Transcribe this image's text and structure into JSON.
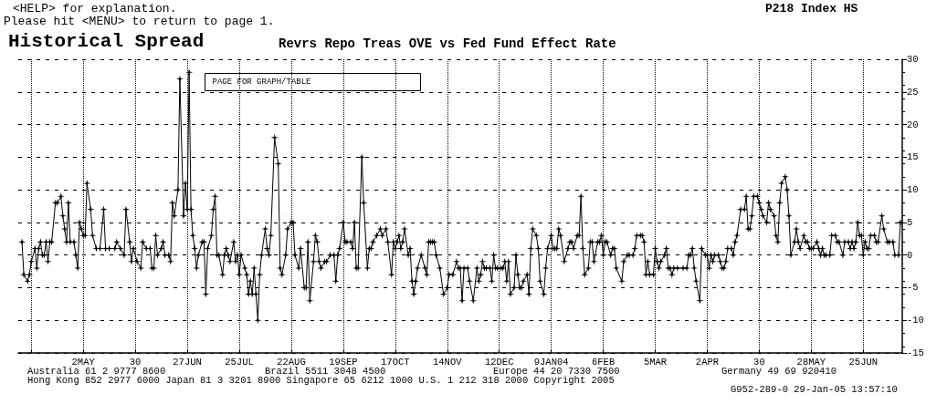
{
  "chart_data": {
    "type": "line",
    "title": "Historical Spread",
    "subtitle": "Revrs Repo Treas OVE vs Fed Fund Effect Rate",
    "annotations": [
      "<HELP> for explanation.",
      "Please hit <MENU> to return to page 1.",
      "P218 Index HS",
      "PAGE FOR GRAPH/TABLE",
      "Australia 61 2 9777 8600",
      "Brazil 5511 3048 4500",
      "Europe 44 20 7330 7500",
      "Germany 49 69 920410",
      "Hong Kong 852 2977 6000 Japan 81 3 3201 8900 Singapore 65 6212 1000 U.S. 1 212 318 2000 Copyright 2005",
      "G952-289-0 29-Jan-05 13:57:10"
    ],
    "x": [
      "2003-03-30",
      "2003-03-31",
      "2003-04-02",
      "2003-04-03",
      "2003-04-04",
      "2003-04-06",
      "2003-04-07",
      "2003-04-08",
      "2003-04-09",
      "2003-04-10",
      "2003-04-11",
      "2003-04-12",
      "2003-04-13",
      "2003-04-14",
      "2003-04-15",
      "2003-04-17",
      "2003-04-18",
      "2003-04-20",
      "2003-04-21",
      "2003-04-22",
      "2003-04-23",
      "2003-04-24",
      "2003-04-25",
      "2003-04-27",
      "2003-04-28",
      "2003-04-29",
      "2003-04-30",
      "2003-05-01",
      "2003-05-02",
      "2003-05-03",
      "2003-05-04",
      "2003-05-06",
      "2003-05-07",
      "2003-05-09",
      "2003-05-11",
      "2003-05-13",
      "2003-05-14",
      "2003-05-16",
      "2003-05-19",
      "2003-05-20",
      "2003-05-22",
      "2003-05-24",
      "2003-05-25",
      "2003-05-27",
      "2003-05-28",
      "2003-05-29",
      "2003-05-31",
      "2003-06-02",
      "2003-06-03",
      "2003-06-05",
      "2003-06-07",
      "2003-06-08",
      "2003-06-09",
      "2003-06-10",
      "2003-06-11",
      "2003-06-13",
      "2003-06-14",
      "2003-06-15",
      "2003-06-17",
      "2003-06-18",
      "2003-06-19",
      "2003-06-20",
      "2003-06-22",
      "2003-06-23",
      "2003-06-25",
      "2003-06-26",
      "2003-06-27",
      "2003-06-28",
      "2003-06-29",
      "2003-06-30",
      "2003-07-01",
      "2003-07-02",
      "2003-07-03",
      "2003-07-05",
      "2003-07-06",
      "2003-07-07",
      "2003-07-08",
      "2003-07-10",
      "2003-07-11",
      "2003-07-12",
      "2003-07-13",
      "2003-07-14",
      "2003-07-16",
      "2003-07-17",
      "2003-07-18",
      "2003-07-19",
      "2003-07-20",
      "2003-07-22",
      "2003-07-23",
      "2003-07-24",
      "2003-07-25",
      "2003-07-26",
      "2003-07-28",
      "2003-07-29",
      "2003-07-30",
      "2003-07-31",
      "2003-08-01",
      "2003-08-02",
      "2003-08-03",
      "2003-08-04",
      "2003-08-05",
      "2003-08-06",
      "2003-08-08",
      "2003-08-09",
      "2003-08-10",
      "2003-08-11",
      "2003-08-13",
      "2003-08-15",
      "2003-08-16",
      "2003-08-17",
      "2003-08-19",
      "2003-08-20",
      "2003-08-22",
      "2003-08-23",
      "2003-08-24",
      "2003-08-26",
      "2003-08-27",
      "2003-08-29",
      "2003-08-30",
      "2003-08-31",
      "2003-09-01",
      "2003-09-03",
      "2003-09-04",
      "2003-09-05",
      "2003-09-06",
      "2003-09-07",
      "2003-09-09",
      "2003-09-10",
      "2003-09-12",
      "2003-09-14",
      "2003-09-15",
      "2003-09-16",
      "2003-09-17",
      "2003-09-19",
      "2003-09-20",
      "2003-09-21",
      "2003-09-23",
      "2003-09-24",
      "2003-09-25",
      "2003-09-26",
      "2003-09-27",
      "2003-09-29",
      "2003-09-30",
      "2003-10-02",
      "2003-10-03",
      "2003-10-04",
      "2003-10-05",
      "2003-10-07",
      "2003-10-09",
      "2003-10-10",
      "2003-10-12",
      "2003-10-13",
      "2003-10-15",
      "2003-10-16",
      "2003-10-17",
      "2003-10-18",
      "2003-10-19",
      "2003-10-20",
      "2003-10-21",
      "2003-10-22",
      "2003-10-24",
      "2003-10-25",
      "2003-10-26",
      "2003-10-27",
      "2003-10-28",
      "2003-10-29",
      "2003-10-31",
      "2003-11-02",
      "2003-11-03",
      "2003-11-04",
      "2003-11-05",
      "2003-11-06",
      "2003-11-07",
      "2003-11-08",
      "2003-11-10",
      "2003-11-12",
      "2003-11-14",
      "2003-11-15",
      "2003-11-17",
      "2003-11-19",
      "2003-11-20",
      "2003-11-21",
      "2003-11-22",
      "2003-11-23",
      "2003-11-25",
      "2003-11-26",
      "2003-11-28",
      "2003-11-30",
      "2003-12-01",
      "2003-12-02",
      "2003-12-03",
      "2003-12-04",
      "2003-12-05",
      "2003-12-07",
      "2003-12-08",
      "2003-12-09",
      "2003-12-10",
      "2003-12-11",
      "2003-12-13",
      "2003-12-14",
      "2003-12-15",
      "2003-12-16",
      "2003-12-17",
      "2003-12-18",
      "2003-12-20",
      "2003-12-21",
      "2003-12-22",
      "2003-12-23",
      "2003-12-24",
      "2003-12-25",
      "2003-12-27",
      "2003-12-28",
      "2003-12-29",
      "2003-12-30",
      "2004-01-01",
      "2004-01-02",
      "2004-01-03",
      "2004-01-05",
      "2004-01-06",
      "2004-01-07",
      "2004-01-09",
      "2004-01-10",
      "2004-01-11",
      "2004-01-12",
      "2004-01-13",
      "2004-01-14",
      "2004-01-16",
      "2004-01-18",
      "2004-01-19",
      "2004-01-20",
      "2004-01-21",
      "2004-01-23",
      "2004-01-24",
      "2004-01-25",
      "2004-01-26",
      "2004-01-27",
      "2004-01-29",
      "2004-01-30",
      "2004-01-31",
      "2004-02-01",
      "2004-02-03",
      "2004-02-04",
      "2004-02-05",
      "2004-02-06",
      "2004-02-07",
      "2004-02-08",
      "2004-02-10",
      "2004-02-11",
      "2004-02-12",
      "2004-02-13",
      "2004-02-16",
      "2004-02-17",
      "2004-02-19",
      "2004-02-20",
      "2004-02-22",
      "2004-02-23",
      "2004-02-24",
      "2004-02-26",
      "2004-02-27",
      "2004-02-28",
      "2004-02-29",
      "2004-03-01",
      "2004-03-02",
      "2004-03-04",
      "2004-03-05",
      "2004-03-06",
      "2004-03-07",
      "2004-03-08",
      "2004-03-10",
      "2004-03-11",
      "2004-03-12",
      "2004-03-13",
      "2004-03-14",
      "2004-03-15",
      "2004-03-17",
      "2004-03-20",
      "2004-03-22",
      "2004-03-23",
      "2004-03-24",
      "2004-03-25",
      "2004-03-26",
      "2004-03-27",
      "2004-03-29",
      "2004-03-30",
      "2004-04-01",
      "2004-04-02",
      "2004-04-03",
      "2004-04-04",
      "2004-04-05",
      "2004-04-06",
      "2004-04-08",
      "2004-04-09",
      "2004-04-10",
      "2004-04-11",
      "2004-04-12",
      "2004-04-13",
      "2004-04-15",
      "2004-04-16",
      "2004-04-17",
      "2004-04-18",
      "2004-04-20",
      "2004-04-22",
      "2004-04-23",
      "2004-04-24",
      "2004-04-25",
      "2004-04-26",
      "2004-04-27",
      "2004-04-29",
      "2004-04-30",
      "2004-05-01",
      "2004-05-02",
      "2004-05-04",
      "2004-05-05",
      "2004-05-06",
      "2004-05-08",
      "2004-05-09",
      "2004-05-10",
      "2004-05-11",
      "2004-05-12",
      "2004-05-14",
      "2004-05-15",
      "2004-05-16",
      "2004-05-17",
      "2004-05-19",
      "2004-05-20",
      "2004-05-21",
      "2004-05-22",
      "2004-05-24",
      "2004-05-25",
      "2004-05-26",
      "2004-05-27",
      "2004-05-28",
      "2004-05-29",
      "2004-05-31",
      "2004-06-01",
      "2004-06-02",
      "2004-06-03",
      "2004-06-04",
      "2004-06-05",
      "2004-06-07",
      "2004-06-08",
      "2004-06-10",
      "2004-06-11",
      "2004-06-12",
      "2004-06-14",
      "2004-06-15",
      "2004-06-17",
      "2004-06-18",
      "2004-06-19",
      "2004-06-20",
      "2004-06-21",
      "2004-06-22",
      "2004-06-23",
      "2004-06-24",
      "2004-06-25",
      "2004-06-26",
      "2004-06-27",
      "2004-06-28",
      "2004-06-29",
      "2004-07-01",
      "2004-07-02",
      "2004-07-03",
      "2004-07-05",
      "2004-07-06",
      "2004-07-08",
      "2004-07-09",
      "2004-07-11",
      "2004-07-12",
      "2004-07-14",
      "2004-07-15"
    ],
    "values": [
      2,
      -3,
      -4,
      -3,
      -1,
      1,
      -2,
      1,
      2,
      0,
      0,
      2,
      -1,
      2,
      2,
      8,
      8,
      9,
      6,
      4,
      2,
      8,
      2,
      2,
      0,
      -2,
      5,
      4,
      3,
      3,
      11,
      7,
      3,
      1,
      1,
      7,
      1,
      1,
      1,
      2,
      1,
      0,
      7,
      2,
      -1,
      1,
      -1,
      -2,
      2,
      1,
      1,
      -2,
      -2,
      3,
      0,
      1,
      2,
      0,
      0,
      -1,
      8,
      6,
      10,
      27,
      6,
      11,
      7,
      28,
      7,
      3,
      1,
      -2,
      0,
      2,
      2,
      -6,
      1,
      3,
      7,
      9,
      0,
      0,
      -3,
      0,
      1,
      0,
      -1,
      2,
      -1,
      0,
      -3,
      0,
      -2,
      -3,
      -6,
      -4,
      -6,
      -2,
      -6,
      -10,
      -3,
      0,
      4,
      1,
      0,
      3,
      18,
      14,
      -2,
      -3,
      0,
      4,
      5,
      5,
      0,
      -2,
      1,
      -5,
      -5,
      2,
      -7,
      -1,
      3,
      2,
      -1,
      -2,
      -1,
      -1,
      0,
      0,
      -4,
      0,
      1,
      5,
      2,
      2,
      2,
      1,
      5,
      -2,
      -2,
      15,
      8,
      -2,
      1,
      1,
      2,
      3,
      4,
      3,
      4,
      2,
      -3,
      2,
      1,
      2,
      3,
      1,
      2,
      4,
      0,
      1,
      -4,
      -6,
      -4,
      -2,
      0,
      -2,
      -3,
      2,
      2,
      2,
      2,
      0,
      -2,
      -6,
      -5,
      -3,
      -3,
      -1,
      -2,
      -2,
      -7,
      -2,
      -2,
      -4,
      -7,
      -2,
      -4,
      -3,
      -1,
      -2,
      -2,
      -2,
      -4,
      0,
      -2,
      -2,
      -2,
      -2,
      -1,
      -4,
      -1,
      -6,
      -5,
      0,
      -3,
      -5,
      -5,
      -4,
      -3,
      -6,
      1,
      4,
      3,
      1,
      -4,
      -6,
      -2,
      1,
      3,
      1,
      1,
      1,
      4,
      3,
      -1,
      1,
      2,
      2,
      1,
      3,
      3,
      9,
      1,
      -3,
      -2,
      2,
      2,
      -1,
      2,
      2,
      3,
      0,
      2,
      2,
      0,
      1,
      1,
      -2,
      -4,
      -1,
      0,
      0,
      0,
      1,
      3,
      3,
      3,
      2,
      -3,
      -1,
      -3,
      -3,
      1,
      -1,
      -2,
      -1,
      0,
      1,
      -2,
      -2,
      -3,
      -2,
      -2,
      -2,
      -2,
      0,
      0,
      1,
      -2,
      -4,
      -7,
      1,
      0,
      0,
      -2,
      0,
      -1,
      0,
      0,
      -1,
      -2,
      -2,
      -1,
      1,
      1,
      0,
      2,
      3,
      7,
      7,
      9,
      4,
      4,
      6,
      9,
      9,
      8,
      7,
      6,
      5,
      8,
      7,
      6,
      3,
      2,
      8,
      11,
      12,
      10,
      6,
      0,
      2,
      4,
      2,
      1,
      3,
      2,
      2,
      1,
      1,
      1,
      2,
      1,
      0,
      1,
      0,
      0,
      0,
      3,
      3,
      2,
      2,
      0,
      2,
      2,
      1,
      2,
      1,
      2,
      5,
      3,
      3,
      0,
      2,
      1,
      1,
      3,
      3,
      2,
      2,
      6,
      4,
      2,
      2,
      2,
      0,
      0,
      5
    ],
    "color": "#000000",
    "marker": "star",
    "line_style": "solid",
    "grid": true,
    "xlim": [
      "2003-03-28",
      "2004-07-16"
    ],
    "xticks": [
      {
        "value": "2003-04-04",
        "label": null
      },
      {
        "value": "2003-05-02",
        "label": "2MAY"
      },
      {
        "value": "2003-05-30",
        "label": "30"
      },
      {
        "value": "2003-06-27",
        "label": "27JUN"
      },
      {
        "value": "2003-07-25",
        "label": "25JUL"
      },
      {
        "value": "2003-08-22",
        "label": "22AUG"
      },
      {
        "value": "2003-09-19",
        "label": "19SEP"
      },
      {
        "value": "2003-10-17",
        "label": "17OCT"
      },
      {
        "value": "2003-11-14",
        "label": "14NOV"
      },
      {
        "value": "2003-12-12",
        "label": "12DEC"
      },
      {
        "value": "2004-01-09",
        "label": "9JAN04"
      },
      {
        "value": "2004-02-06",
        "label": "6FEB"
      },
      {
        "value": "2004-03-05",
        "label": "5MAR"
      },
      {
        "value": "2004-04-02",
        "label": "2APR"
      },
      {
        "value": "2004-04-30",
        "label": "30"
      },
      {
        "value": "2004-05-28",
        "label": "28MAY"
      },
      {
        "value": "2004-06-25",
        "label": "25JUN"
      }
    ],
    "ylim": [
      -15,
      30
    ],
    "yticks": [
      -15,
      -10,
      -5,
      0,
      5,
      10,
      15,
      20,
      25,
      30
    ]
  }
}
